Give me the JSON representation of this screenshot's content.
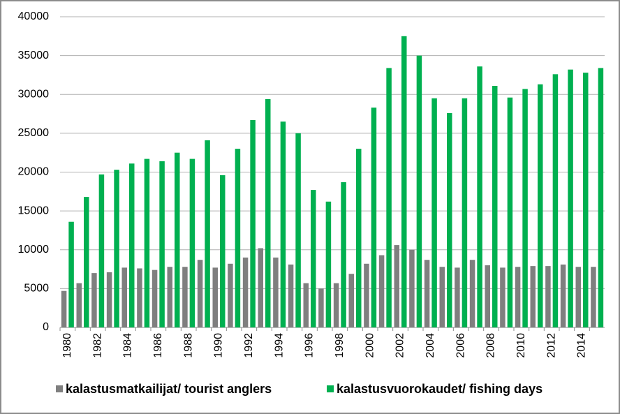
{
  "chart_data": {
    "type": "bar",
    "categories": [
      "1980",
      null,
      "1982",
      null,
      "1984",
      null,
      "1986",
      null,
      "1988",
      null,
      "1990",
      null,
      "1992",
      null,
      "1994",
      null,
      "1996",
      null,
      "1998",
      null,
      "2000",
      null,
      "2002",
      null,
      "2004",
      null,
      "2006",
      null,
      "2008",
      null,
      "2010",
      null,
      "2012",
      null,
      "2014",
      null
    ],
    "series": [
      {
        "name": "kalastusmatkailijat/ tourist anglers",
        "color": "#7f7f7f",
        "values": [
          4700,
          5700,
          7000,
          7100,
          7700,
          7600,
          7400,
          7800,
          7800,
          8700,
          7700,
          8200,
          9000,
          10200,
          9000,
          8100,
          5700,
          5000,
          5700,
          6900,
          8200,
          9300,
          10600,
          10000,
          8700,
          7800,
          7700,
          8700,
          8000,
          7700,
          7800,
          7900,
          7900,
          8100,
          7800,
          7800
        ]
      },
      {
        "name": "kalastusvuorokaudet/ fishing days",
        "color": "#00b050",
        "values": [
          13600,
          16800,
          19700,
          20300,
          21100,
          21700,
          21400,
          22500,
          21700,
          24100,
          19600,
          23000,
          26700,
          29400,
          26500,
          25000,
          17700,
          16200,
          18700,
          23000,
          28300,
          33400,
          37500,
          35000,
          29500,
          27600,
          29500,
          33600,
          31100,
          29600,
          30700,
          31300,
          32600,
          33200,
          32800,
          33400
        ]
      }
    ],
    "ylim": [
      0,
      40000
    ],
    "yticks": [
      0,
      5000,
      10000,
      15000,
      20000,
      25000,
      30000,
      35000,
      40000
    ],
    "grid": true,
    "legend": "bottom"
  }
}
